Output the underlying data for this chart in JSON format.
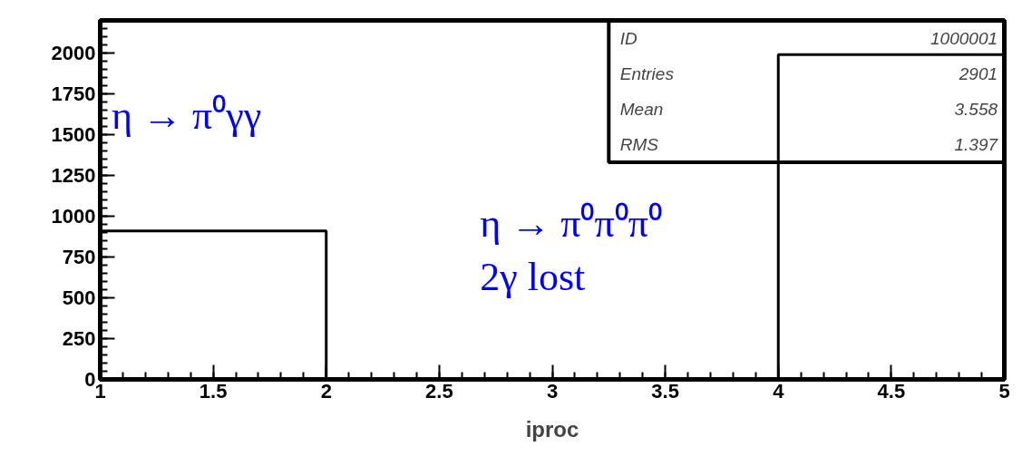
{
  "chart_data": {
    "type": "histogram",
    "xlabel": "iproc",
    "bins": [
      1,
      2,
      3,
      4,
      5
    ],
    "values": [
      910,
      0,
      0,
      1990
    ],
    "color": "#000000",
    "xlim": [
      1,
      5
    ],
    "xticks": [
      1,
      1.5,
      2,
      2.5,
      3,
      3.5,
      4,
      4.5,
      5
    ],
    "ylim": [
      0,
      2200
    ],
    "yticks": [
      0,
      250,
      500,
      750,
      1000,
      1250,
      1500,
      1750,
      2000
    ],
    "grid": false,
    "annotations": [
      "η → π⁰γγ",
      "η → π⁰π⁰π⁰\n2γ  lost",
      "ID",
      "1000001",
      "Entries",
      "2901",
      "Mean",
      "3.558",
      "RMS",
      "1.397"
    ]
  }
}
